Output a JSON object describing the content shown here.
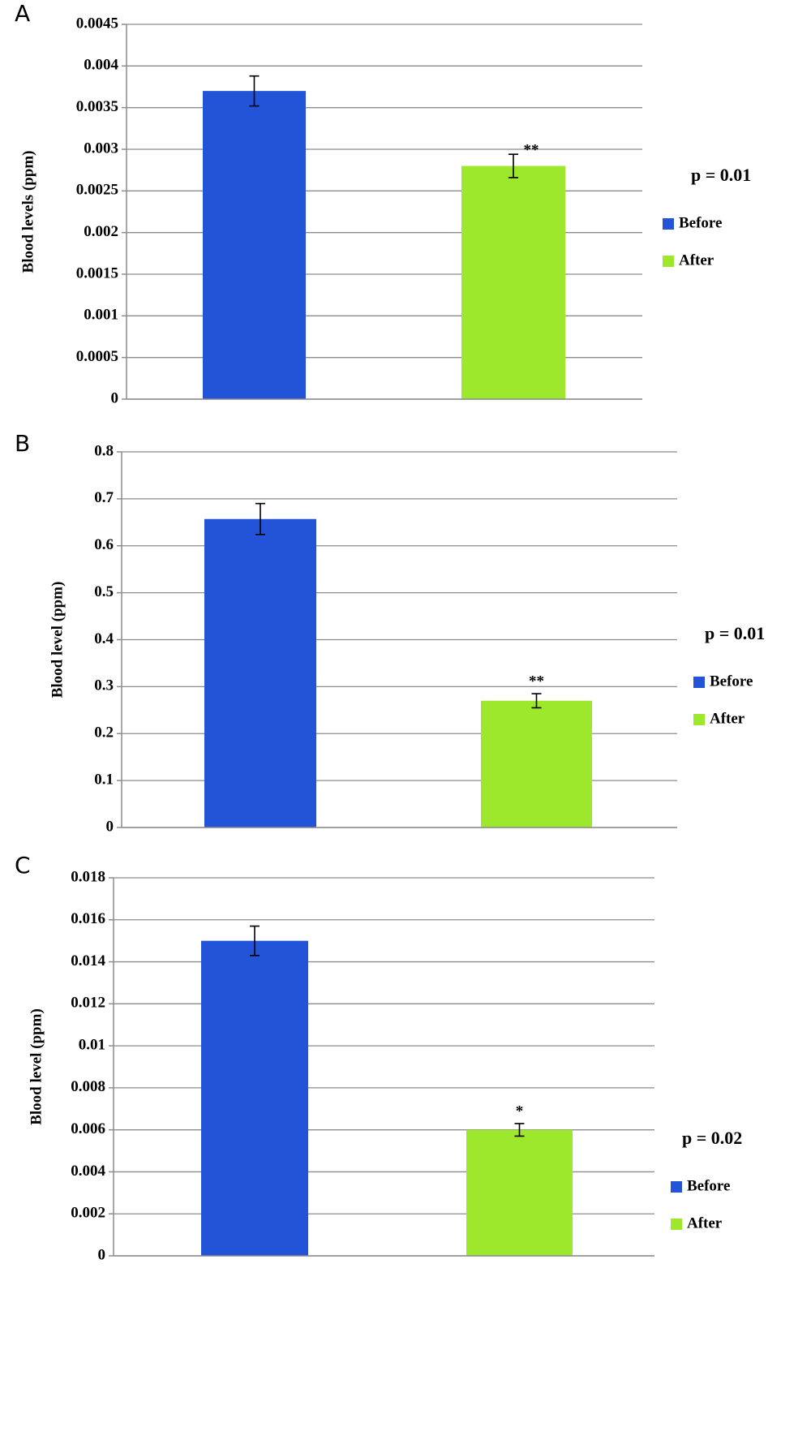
{
  "chart_data": [
    {
      "type": "bar",
      "panel": "A",
      "y_label": "Blood levels (ppm)",
      "annotation": "p = 0.01",
      "categories": [
        null
      ],
      "series": [
        {
          "name": "Before",
          "color": "#2353d6",
          "values": [
            0.0037
          ],
          "errors": [
            0.00018
          ]
        },
        {
          "name": "After",
          "color": "#9de82c",
          "values": [
            0.0028
          ],
          "errors": [
            0.00014
          ],
          "significance": "**"
        }
      ],
      "ylim": [
        0,
        0.0045
      ],
      "yticks": [
        0,
        0.0005,
        0.001,
        0.0015,
        0.002,
        0.0025,
        0.003,
        0.0035,
        0.004,
        0.0045
      ],
      "grid": true
    },
    {
      "type": "bar",
      "panel": "B",
      "y_label": "Blood level (ppm)",
      "annotation": "p = 0.01",
      "categories": [
        null
      ],
      "series": [
        {
          "name": "Before",
          "color": "#2353d6",
          "values": [
            0.657
          ],
          "errors": [
            0.033
          ]
        },
        {
          "name": "After",
          "color": "#9de82c",
          "values": [
            0.27
          ],
          "errors": [
            0.015
          ],
          "significance": "**"
        }
      ],
      "ylim": [
        0,
        0.8
      ],
      "yticks": [
        0,
        0.1,
        0.2,
        0.3,
        0.4,
        0.5,
        0.6,
        0.7,
        0.8
      ],
      "grid": true
    },
    {
      "type": "bar",
      "panel": "C",
      "y_label": "Blood level (ppm)",
      "annotation": "p = 0.02",
      "categories": [
        null
      ],
      "series": [
        {
          "name": "Before",
          "color": "#2353d6",
          "values": [
            0.015
          ],
          "errors": [
            0.0007
          ]
        },
        {
          "name": "After",
          "color": "#9de82c",
          "values": [
            0.006
          ],
          "errors": [
            0.0003
          ],
          "significance": "*"
        }
      ],
      "ylim": [
        0,
        0.018
      ],
      "yticks": [
        0,
        0.002,
        0.004,
        0.006,
        0.008,
        0.01,
        0.012,
        0.014,
        0.016,
        0.018
      ],
      "grid": true
    }
  ]
}
